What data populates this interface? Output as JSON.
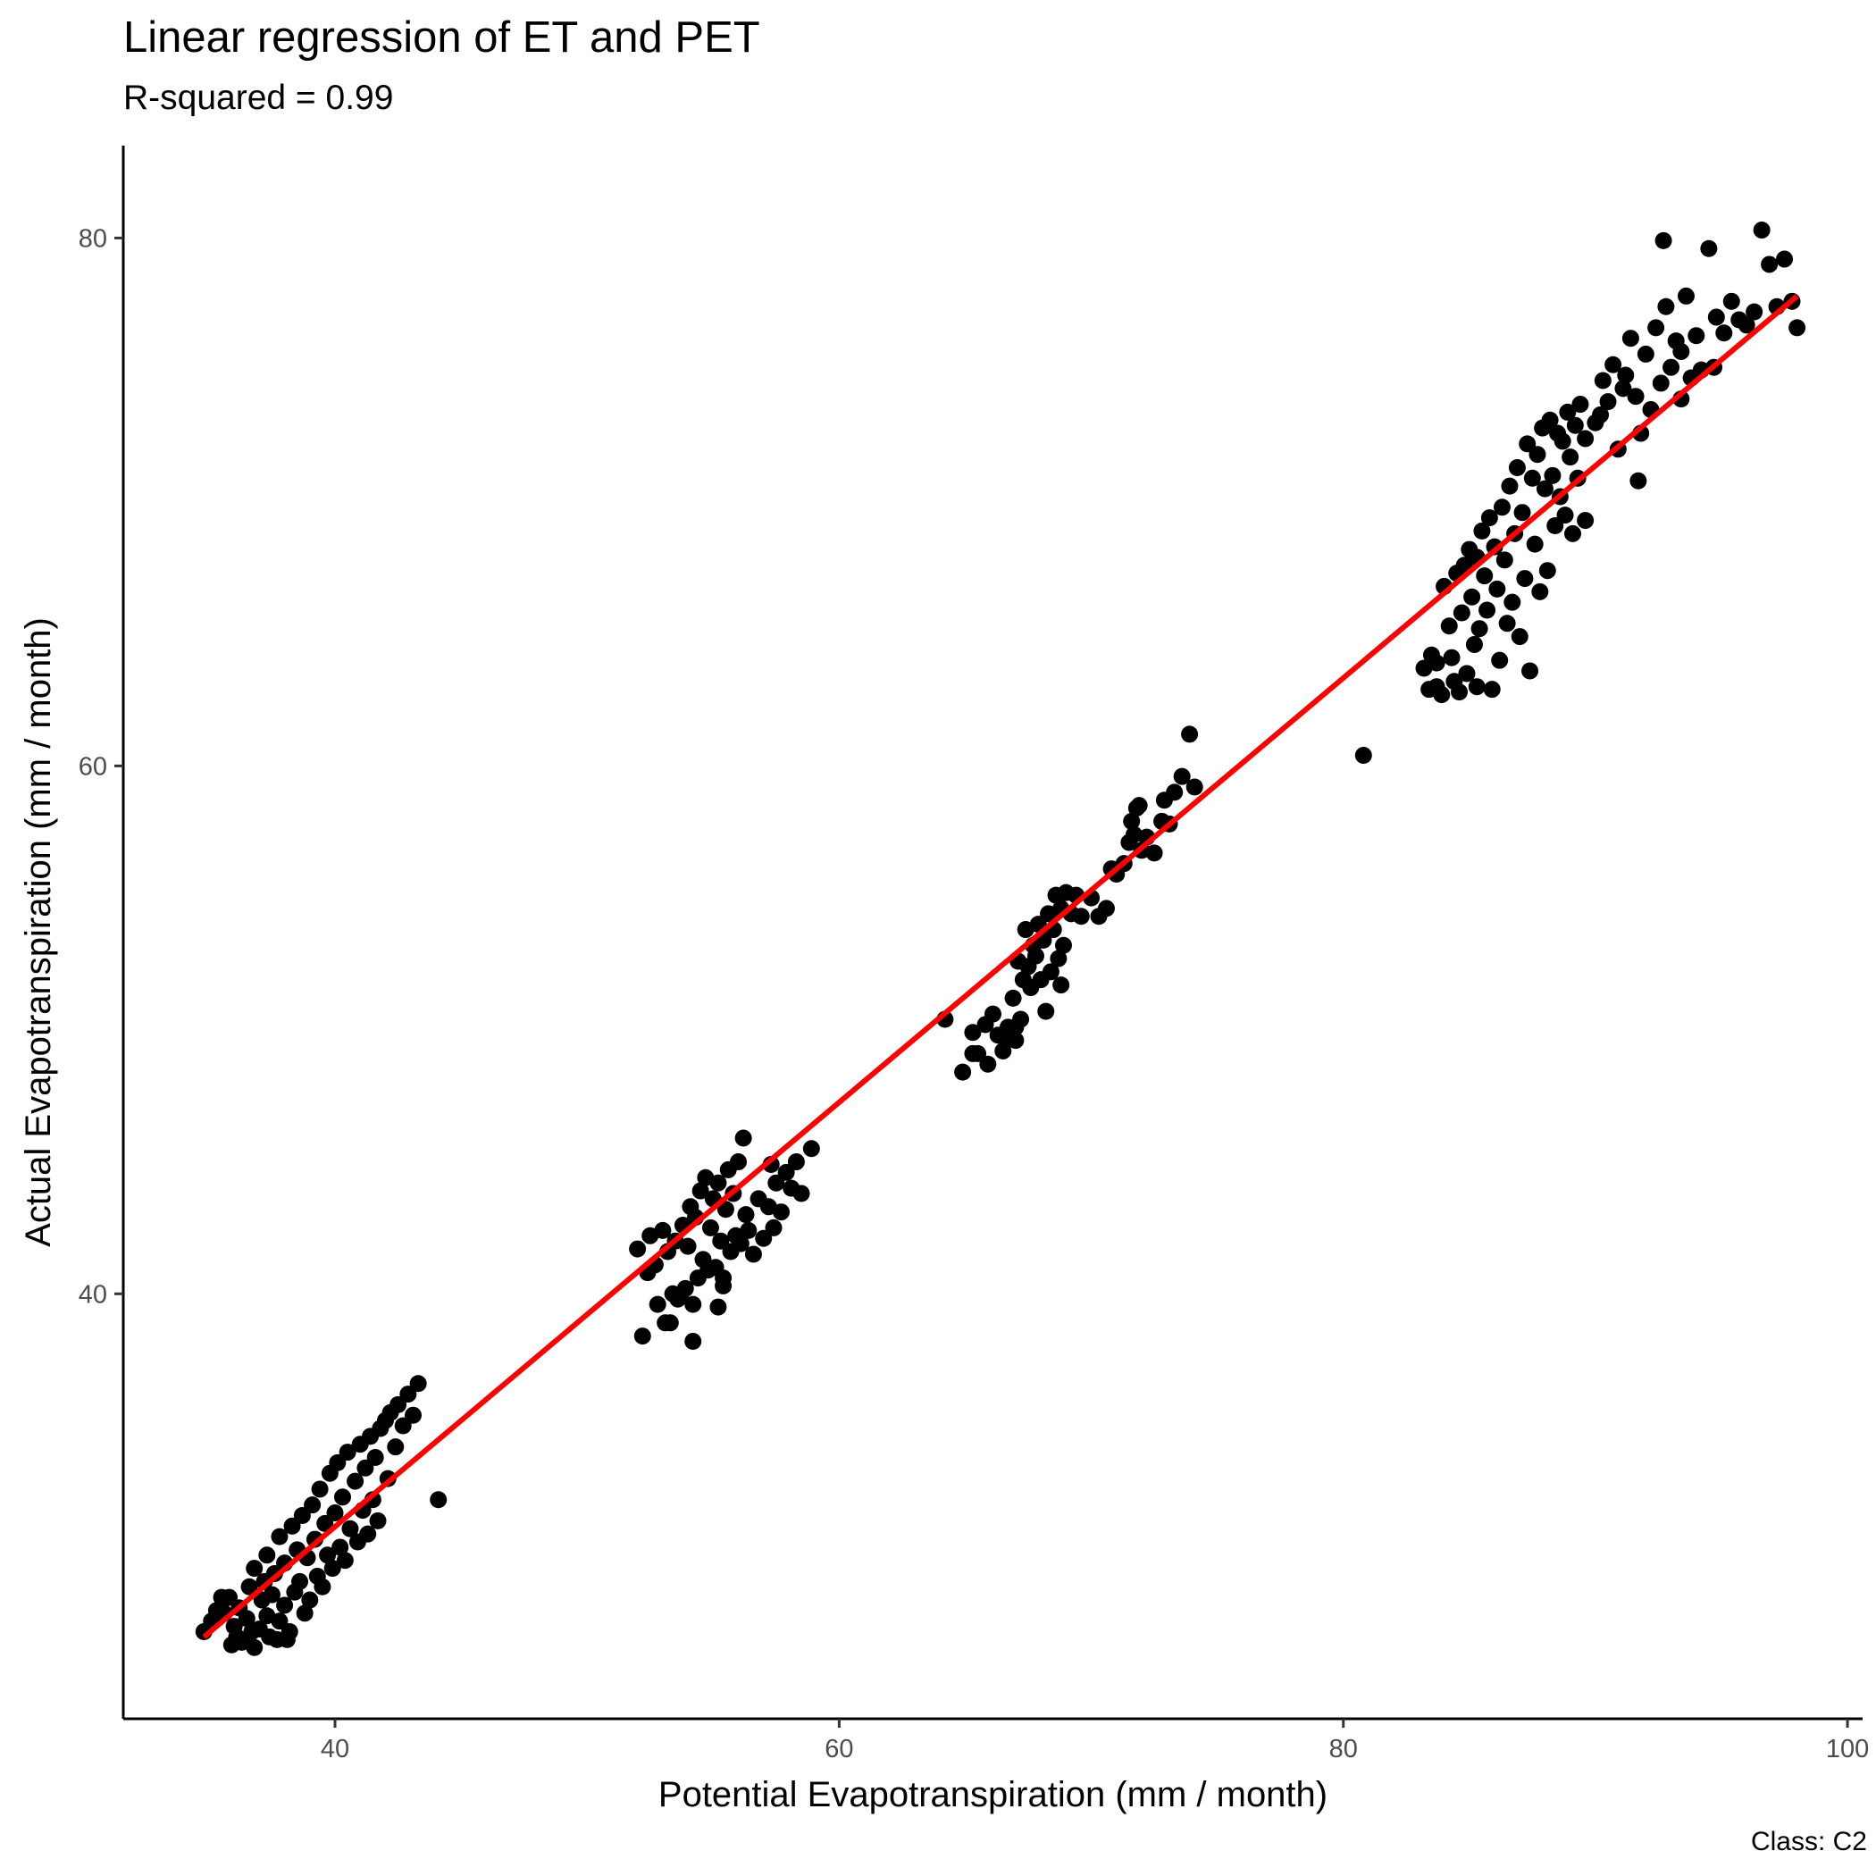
{
  "chart_data": {
    "type": "scatter",
    "title": "Linear regression of ET and PET",
    "subtitle": "R-squared = 0.99",
    "caption": "Class: C2",
    "xlabel": "Potential Evapotranspiration (mm / month)",
    "ylabel": "Actual Evapotranspiration (mm / month)",
    "xlim": [
      31.6,
      100.6
    ],
    "ylim": [
      23.9,
      83.5
    ],
    "xticks": [
      40,
      60,
      80,
      100
    ],
    "yticks": [
      40,
      60,
      80
    ],
    "grid": false,
    "point_color": "#000000",
    "line_color": "#ff0000",
    "regression_line": {
      "x": [
        34.8,
        98.0
      ],
      "y": [
        27.0,
        77.8
      ]
    },
    "points": [
      [
        34.8,
        27.2
      ],
      [
        35.1,
        27.6
      ],
      [
        35.3,
        28.0
      ],
      [
        35.6,
        27.9
      ],
      [
        35.8,
        28.5
      ],
      [
        36.0,
        27.4
      ],
      [
        36.2,
        28.1
      ],
      [
        36.3,
        26.8
      ],
      [
        36.5,
        27.7
      ],
      [
        36.6,
        28.9
      ],
      [
        36.8,
        26.6
      ],
      [
        36.8,
        29.6
      ],
      [
        37.0,
        27.3
      ],
      [
        37.1,
        28.4
      ],
      [
        37.2,
        29.1
      ],
      [
        37.3,
        30.1
      ],
      [
        37.4,
        27.0
      ],
      [
        37.5,
        28.6
      ],
      [
        37.6,
        29.4
      ],
      [
        37.8,
        27.6
      ],
      [
        37.8,
        30.8
      ],
      [
        38.0,
        28.2
      ],
      [
        38.0,
        29.8
      ],
      [
        38.2,
        27.2
      ],
      [
        38.3,
        31.2
      ],
      [
        38.4,
        28.7
      ],
      [
        38.5,
        30.3
      ],
      [
        38.6,
        29.1
      ],
      [
        38.7,
        31.6
      ],
      [
        38.8,
        27.9
      ],
      [
        38.9,
        30.0
      ],
      [
        39.0,
        28.4
      ],
      [
        39.1,
        32.0
      ],
      [
        39.2,
        30.7
      ],
      [
        39.3,
        29.3
      ],
      [
        39.4,
        32.6
      ],
      [
        39.5,
        28.9
      ],
      [
        39.6,
        31.3
      ],
      [
        39.7,
        30.1
      ],
      [
        39.8,
        33.2
      ],
      [
        39.9,
        29.6
      ],
      [
        40.0,
        31.7
      ],
      [
        40.1,
        33.6
      ],
      [
        40.2,
        30.4
      ],
      [
        40.3,
        32.3
      ],
      [
        40.4,
        29.9
      ],
      [
        40.5,
        34.0
      ],
      [
        40.6,
        31.1
      ],
      [
        40.8,
        32.9
      ],
      [
        40.9,
        30.6
      ],
      [
        41.0,
        34.3
      ],
      [
        41.1,
        31.8
      ],
      [
        41.2,
        33.4
      ],
      [
        41.3,
        30.9
      ],
      [
        41.4,
        34.6
      ],
      [
        41.5,
        32.2
      ],
      [
        41.6,
        33.8
      ],
      [
        41.7,
        31.4
      ],
      [
        41.8,
        34.9
      ],
      [
        42.0,
        35.2
      ],
      [
        42.1,
        33.0
      ],
      [
        42.2,
        35.5
      ],
      [
        42.4,
        34.2
      ],
      [
        42.5,
        35.8
      ],
      [
        42.7,
        35.0
      ],
      [
        42.9,
        36.2
      ],
      [
        43.1,
        35.4
      ],
      [
        43.3,
        36.6
      ],
      [
        44.1,
        32.2
      ],
      [
        36.1,
        27.0
      ],
      [
        35.9,
        26.7
      ],
      [
        37.7,
        26.9
      ],
      [
        38.1,
        26.9
      ],
      [
        36.7,
        27.2
      ],
      [
        37.3,
        27.8
      ],
      [
        35.5,
        28.5
      ],
      [
        52.0,
        41.7
      ],
      [
        52.2,
        38.4
      ],
      [
        52.4,
        40.8
      ],
      [
        52.5,
        42.2
      ],
      [
        52.7,
        41.1
      ],
      [
        52.8,
        39.6
      ],
      [
        53.0,
        42.4
      ],
      [
        53.1,
        38.9
      ],
      [
        53.2,
        41.6
      ],
      [
        53.4,
        40.0
      ],
      [
        53.5,
        42.0
      ],
      [
        53.6,
        39.8
      ],
      [
        53.8,
        42.6
      ],
      [
        53.9,
        40.2
      ],
      [
        54.0,
        41.8
      ],
      [
        54.1,
        43.3
      ],
      [
        54.2,
        38.2
      ],
      [
        54.3,
        42.9
      ],
      [
        54.4,
        40.6
      ],
      [
        54.5,
        43.9
      ],
      [
        54.6,
        41.3
      ],
      [
        54.7,
        44.4
      ],
      [
        54.8,
        40.9
      ],
      [
        54.9,
        42.5
      ],
      [
        55.0,
        43.6
      ],
      [
        55.1,
        41.0
      ],
      [
        55.2,
        44.2
      ],
      [
        55.3,
        42.0
      ],
      [
        55.4,
        40.3
      ],
      [
        55.5,
        43.2
      ],
      [
        55.6,
        44.7
      ],
      [
        55.7,
        41.6
      ],
      [
        55.8,
        43.8
      ],
      [
        55.9,
        42.2
      ],
      [
        56.0,
        45.0
      ],
      [
        56.1,
        41.9
      ],
      [
        56.2,
        45.9
      ],
      [
        56.3,
        43.0
      ],
      [
        56.4,
        42.4
      ],
      [
        56.6,
        41.5
      ],
      [
        56.8,
        43.6
      ],
      [
        57.0,
        42.1
      ],
      [
        57.2,
        43.3
      ],
      [
        57.3,
        44.9
      ],
      [
        57.4,
        42.5
      ],
      [
        57.5,
        44.2
      ],
      [
        57.7,
        43.1
      ],
      [
        57.9,
        44.6
      ],
      [
        58.1,
        44.0
      ],
      [
        58.3,
        45.0
      ],
      [
        58.5,
        43.8
      ],
      [
        58.9,
        45.5
      ],
      [
        53.3,
        38.9
      ],
      [
        55.4,
        40.6
      ],
      [
        53.7,
        39.9
      ],
      [
        54.2,
        39.6
      ],
      [
        55.2,
        39.5
      ],
      [
        64.2,
        50.4
      ],
      [
        64.9,
        48.4
      ],
      [
        65.3,
        49.9
      ],
      [
        65.5,
        49.1
      ],
      [
        65.8,
        50.2
      ],
      [
        65.9,
        48.7
      ],
      [
        66.1,
        50.6
      ],
      [
        66.3,
        49.8
      ],
      [
        66.5,
        49.2
      ],
      [
        66.7,
        50.1
      ],
      [
        66.9,
        51.2
      ],
      [
        67.0,
        49.6
      ],
      [
        67.1,
        52.6
      ],
      [
        67.2,
        50.4
      ],
      [
        67.3,
        51.9
      ],
      [
        67.4,
        53.8
      ],
      [
        67.5,
        52.4
      ],
      [
        67.6,
        51.6
      ],
      [
        67.7,
        53.2
      ],
      [
        67.8,
        52.8
      ],
      [
        67.9,
        54.0
      ],
      [
        68.0,
        51.9
      ],
      [
        68.1,
        53.4
      ],
      [
        68.2,
        50.7
      ],
      [
        68.3,
        54.4
      ],
      [
        68.4,
        52.2
      ],
      [
        68.5,
        53.8
      ],
      [
        68.6,
        55.1
      ],
      [
        68.7,
        52.7
      ],
      [
        68.8,
        54.6
      ],
      [
        68.9,
        53.2
      ],
      [
        69.0,
        55.2
      ],
      [
        69.2,
        54.4
      ],
      [
        69.4,
        55.1
      ],
      [
        69.6,
        54.3
      ],
      [
        70.0,
        55.0
      ],
      [
        70.3,
        54.3
      ],
      [
        70.6,
        54.6
      ],
      [
        70.8,
        56.1
      ],
      [
        71.0,
        55.9
      ],
      [
        71.3,
        56.3
      ],
      [
        71.5,
        57.1
      ],
      [
        71.6,
        57.9
      ],
      [
        71.7,
        57.4
      ],
      [
        71.9,
        58.5
      ],
      [
        72.0,
        56.8
      ],
      [
        72.2,
        57.3
      ],
      [
        72.5,
        56.7
      ],
      [
        72.8,
        57.9
      ],
      [
        72.9,
        58.7
      ],
      [
        73.1,
        57.8
      ],
      [
        73.3,
        59.0
      ],
      [
        73.6,
        59.6
      ],
      [
        73.9,
        61.2
      ],
      [
        74.1,
        59.2
      ],
      [
        66.6,
        49.7
      ],
      [
        67.0,
        50.1
      ],
      [
        65.3,
        49.1
      ],
      [
        71.8,
        58.4
      ],
      [
        68.8,
        51.7
      ],
      [
        80.8,
        60.4
      ],
      [
        83.2,
        63.7
      ],
      [
        83.4,
        62.9
      ],
      [
        83.5,
        64.2
      ],
      [
        83.7,
        63.9
      ],
      [
        83.9,
        62.7
      ],
      [
        84.0,
        66.8
      ],
      [
        84.2,
        65.3
      ],
      [
        84.3,
        64.1
      ],
      [
        84.4,
        63.2
      ],
      [
        84.5,
        67.3
      ],
      [
        84.6,
        62.8
      ],
      [
        84.7,
        65.8
      ],
      [
        84.8,
        67.6
      ],
      [
        84.9,
        63.5
      ],
      [
        85.0,
        68.2
      ],
      [
        85.1,
        66.4
      ],
      [
        85.2,
        64.6
      ],
      [
        85.3,
        67.9
      ],
      [
        85.4,
        65.2
      ],
      [
        85.5,
        68.9
      ],
      [
        85.6,
        67.2
      ],
      [
        85.7,
        65.9
      ],
      [
        85.8,
        69.4
      ],
      [
        85.9,
        62.9
      ],
      [
        86.0,
        68.3
      ],
      [
        86.1,
        66.7
      ],
      [
        86.2,
        64.0
      ],
      [
        86.3,
        69.8
      ],
      [
        86.4,
        67.8
      ],
      [
        86.5,
        65.4
      ],
      [
        86.6,
        70.6
      ],
      [
        86.7,
        66.2
      ],
      [
        86.8,
        68.8
      ],
      [
        86.9,
        71.3
      ],
      [
        87.0,
        64.9
      ],
      [
        87.1,
        69.6
      ],
      [
        87.2,
        67.1
      ],
      [
        87.3,
        72.2
      ],
      [
        87.4,
        63.6
      ],
      [
        87.5,
        70.9
      ],
      [
        87.6,
        68.4
      ],
      [
        87.7,
        71.8
      ],
      [
        87.8,
        66.6
      ],
      [
        87.9,
        72.8
      ],
      [
        88.0,
        70.5
      ],
      [
        88.1,
        67.4
      ],
      [
        88.2,
        73.1
      ],
      [
        88.3,
        71.0
      ],
      [
        88.4,
        69.1
      ],
      [
        88.5,
        72.6
      ],
      [
        88.6,
        70.2
      ],
      [
        88.7,
        72.3
      ],
      [
        88.8,
        69.5
      ],
      [
        88.9,
        73.4
      ],
      [
        89.0,
        71.7
      ],
      [
        89.1,
        68.8
      ],
      [
        89.2,
        72.9
      ],
      [
        89.3,
        70.9
      ],
      [
        89.4,
        73.7
      ],
      [
        89.6,
        72.4
      ],
      [
        90.0,
        73.0
      ],
      [
        90.3,
        74.6
      ],
      [
        90.5,
        73.8
      ],
      [
        90.7,
        75.2
      ],
      [
        90.9,
        72.0
      ],
      [
        91.2,
        74.8
      ],
      [
        91.4,
        76.2
      ],
      [
        91.6,
        74.0
      ],
      [
        91.8,
        72.6
      ],
      [
        92.0,
        75.6
      ],
      [
        92.2,
        73.5
      ],
      [
        92.4,
        76.6
      ],
      [
        92.6,
        74.5
      ],
      [
        92.8,
        77.4
      ],
      [
        93.0,
        75.1
      ],
      [
        93.2,
        76.1
      ],
      [
        93.4,
        73.9
      ],
      [
        93.6,
        77.8
      ],
      [
        93.8,
        74.7
      ],
      [
        94.0,
        76.3
      ],
      [
        94.2,
        75.0
      ],
      [
        94.5,
        79.6
      ],
      [
        94.8,
        77.0
      ],
      [
        95.1,
        76.4
      ],
      [
        95.4,
        77.6
      ],
      [
        95.7,
        76.9
      ],
      [
        96.0,
        76.7
      ],
      [
        96.3,
        77.2
      ],
      [
        96.6,
        80.3
      ],
      [
        96.9,
        79.0
      ],
      [
        97.2,
        77.4
      ],
      [
        97.5,
        79.2
      ],
      [
        97.8,
        77.6
      ],
      [
        98.0,
        76.6
      ],
      [
        91.1,
        74.3
      ],
      [
        92.7,
        79.9
      ],
      [
        93.4,
        75.7
      ],
      [
        94.7,
        75.1
      ],
      [
        90.2,
        73.3
      ],
      [
        89.6,
        69.3
      ],
      [
        91.7,
        70.8
      ],
      [
        85.3,
        63.0
      ],
      [
        83.7,
        63.0
      ]
    ]
  }
}
